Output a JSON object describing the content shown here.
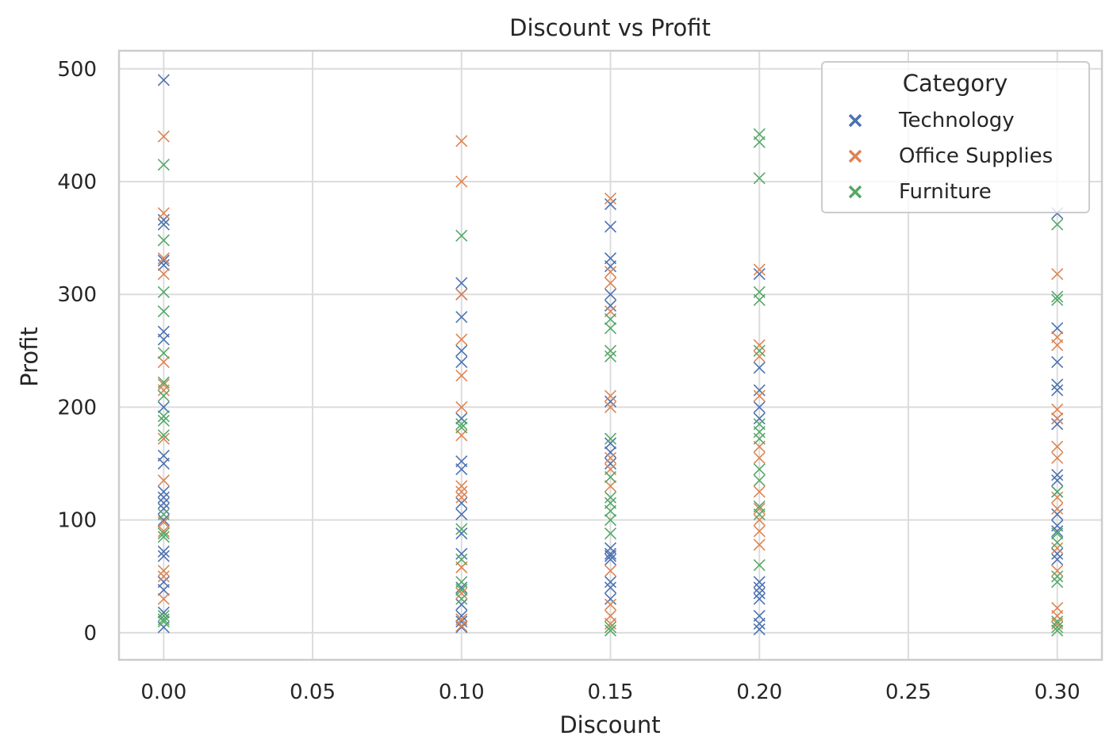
{
  "chart_data": {
    "type": "scatter",
    "title": "Discount vs Profit",
    "xlabel": "Discount",
    "ylabel": "Profit",
    "xlim": [
      -0.015,
      0.315
    ],
    "ylim": [
      -24,
      516
    ],
    "xticks": [
      "0.00",
      "0.05",
      "0.10",
      "0.15",
      "0.20",
      "0.25",
      "0.30"
    ],
    "yticks": [
      "0",
      "100",
      "200",
      "300",
      "400",
      "500"
    ],
    "grid": true,
    "marker": "x",
    "legend": {
      "title": "Category",
      "placement": "top-right"
    },
    "series": [
      {
        "name": "Technology",
        "color": "#4c72b0",
        "points": [
          [
            0.0,
            490
          ],
          [
            0.0,
            366
          ],
          [
            0.0,
            362
          ],
          [
            0.0,
            330
          ],
          [
            0.0,
            326
          ],
          [
            0.0,
            267
          ],
          [
            0.0,
            260
          ],
          [
            0.0,
            200
          ],
          [
            0.0,
            157
          ],
          [
            0.0,
            150
          ],
          [
            0.0,
            125
          ],
          [
            0.0,
            120
          ],
          [
            0.0,
            115
          ],
          [
            0.0,
            110
          ],
          [
            0.0,
            100
          ],
          [
            0.0,
            72
          ],
          [
            0.0,
            68
          ],
          [
            0.0,
            45
          ],
          [
            0.0,
            38
          ],
          [
            0.0,
            18
          ],
          [
            0.0,
            5
          ],
          [
            0.1,
            310
          ],
          [
            0.1,
            300
          ],
          [
            0.1,
            280
          ],
          [
            0.1,
            250
          ],
          [
            0.1,
            240
          ],
          [
            0.1,
            190
          ],
          [
            0.1,
            152
          ],
          [
            0.1,
            145
          ],
          [
            0.1,
            115
          ],
          [
            0.1,
            105
          ],
          [
            0.1,
            88
          ],
          [
            0.1,
            70
          ],
          [
            0.1,
            40
          ],
          [
            0.1,
            25
          ],
          [
            0.1,
            15
          ],
          [
            0.1,
            10
          ],
          [
            0.1,
            5
          ],
          [
            0.15,
            380
          ],
          [
            0.15,
            360
          ],
          [
            0.15,
            332
          ],
          [
            0.15,
            325
          ],
          [
            0.15,
            300
          ],
          [
            0.15,
            290
          ],
          [
            0.15,
            205
          ],
          [
            0.15,
            168
          ],
          [
            0.15,
            160
          ],
          [
            0.15,
            150
          ],
          [
            0.15,
            75
          ],
          [
            0.15,
            70
          ],
          [
            0.15,
            68
          ],
          [
            0.15,
            65
          ],
          [
            0.15,
            45
          ],
          [
            0.15,
            40
          ],
          [
            0.15,
            30
          ],
          [
            0.2,
            318
          ],
          [
            0.2,
            235
          ],
          [
            0.2,
            215
          ],
          [
            0.2,
            200
          ],
          [
            0.2,
            190
          ],
          [
            0.2,
            45
          ],
          [
            0.2,
            40
          ],
          [
            0.2,
            35
          ],
          [
            0.2,
            30
          ],
          [
            0.2,
            15
          ],
          [
            0.2,
            8
          ],
          [
            0.2,
            3
          ],
          [
            0.3,
            372
          ],
          [
            0.3,
            270
          ],
          [
            0.3,
            240
          ],
          [
            0.3,
            220
          ],
          [
            0.3,
            215
          ],
          [
            0.3,
            190
          ],
          [
            0.3,
            185
          ],
          [
            0.3,
            140
          ],
          [
            0.3,
            135
          ],
          [
            0.3,
            125
          ],
          [
            0.3,
            105
          ],
          [
            0.3,
            95
          ],
          [
            0.3,
            90
          ],
          [
            0.3,
            70
          ],
          [
            0.3,
            65
          ]
        ]
      },
      {
        "name": "Office Supplies",
        "color": "#dd8452",
        "points": [
          [
            0.0,
            440
          ],
          [
            0.0,
            372
          ],
          [
            0.0,
            332
          ],
          [
            0.0,
            318
          ],
          [
            0.0,
            240
          ],
          [
            0.0,
            220
          ],
          [
            0.0,
            215
          ],
          [
            0.0,
            172
          ],
          [
            0.0,
            135
          ],
          [
            0.0,
            98
          ],
          [
            0.0,
            90
          ],
          [
            0.0,
            55
          ],
          [
            0.0,
            50
          ],
          [
            0.0,
            30
          ],
          [
            0.1,
            436
          ],
          [
            0.1,
            400
          ],
          [
            0.1,
            300
          ],
          [
            0.1,
            260
          ],
          [
            0.1,
            228
          ],
          [
            0.1,
            200
          ],
          [
            0.1,
            175
          ],
          [
            0.1,
            130
          ],
          [
            0.1,
            125
          ],
          [
            0.1,
            120
          ],
          [
            0.1,
            58
          ],
          [
            0.1,
            35
          ],
          [
            0.1,
            12
          ],
          [
            0.1,
            6
          ],
          [
            0.15,
            385
          ],
          [
            0.15,
            320
          ],
          [
            0.15,
            310
          ],
          [
            0.15,
            285
          ],
          [
            0.15,
            210
          ],
          [
            0.15,
            200
          ],
          [
            0.15,
            155
          ],
          [
            0.15,
            145
          ],
          [
            0.15,
            130
          ],
          [
            0.15,
            55
          ],
          [
            0.15,
            25
          ],
          [
            0.15,
            15
          ],
          [
            0.15,
            8
          ],
          [
            0.2,
            322
          ],
          [
            0.2,
            255
          ],
          [
            0.2,
            245
          ],
          [
            0.2,
            210
          ],
          [
            0.2,
            165
          ],
          [
            0.2,
            155
          ],
          [
            0.2,
            125
          ],
          [
            0.2,
            110
          ],
          [
            0.2,
            100
          ],
          [
            0.2,
            90
          ],
          [
            0.2,
            78
          ],
          [
            0.3,
            318
          ],
          [
            0.3,
            262
          ],
          [
            0.3,
            255
          ],
          [
            0.3,
            198
          ],
          [
            0.3,
            190
          ],
          [
            0.3,
            165
          ],
          [
            0.3,
            155
          ],
          [
            0.3,
            120
          ],
          [
            0.3,
            110
          ],
          [
            0.3,
            75
          ],
          [
            0.3,
            55
          ],
          [
            0.3,
            22
          ],
          [
            0.3,
            15
          ],
          [
            0.3,
            8
          ]
        ]
      },
      {
        "name": "Furniture",
        "color": "#55a868",
        "points": [
          [
            0.0,
            415
          ],
          [
            0.0,
            348
          ],
          [
            0.0,
            302
          ],
          [
            0.0,
            285
          ],
          [
            0.0,
            248
          ],
          [
            0.0,
            222
          ],
          [
            0.0,
            210
          ],
          [
            0.0,
            192
          ],
          [
            0.0,
            188
          ],
          [
            0.0,
            175
          ],
          [
            0.0,
            105
          ],
          [
            0.0,
            88
          ],
          [
            0.0,
            85
          ],
          [
            0.0,
            15
          ],
          [
            0.0,
            12
          ],
          [
            0.0,
            10
          ],
          [
            0.1,
            352
          ],
          [
            0.1,
            185
          ],
          [
            0.1,
            182
          ],
          [
            0.1,
            92
          ],
          [
            0.1,
            65
          ],
          [
            0.1,
            45
          ],
          [
            0.1,
            38
          ],
          [
            0.1,
            30
          ],
          [
            0.15,
            278
          ],
          [
            0.15,
            270
          ],
          [
            0.15,
            250
          ],
          [
            0.15,
            245
          ],
          [
            0.15,
            172
          ],
          [
            0.15,
            138
          ],
          [
            0.15,
            120
          ],
          [
            0.15,
            115
          ],
          [
            0.15,
            108
          ],
          [
            0.15,
            100
          ],
          [
            0.15,
            88
          ],
          [
            0.15,
            5
          ],
          [
            0.15,
            2
          ],
          [
            0.2,
            442
          ],
          [
            0.2,
            435
          ],
          [
            0.2,
            403
          ],
          [
            0.2,
            302
          ],
          [
            0.2,
            295
          ],
          [
            0.2,
            250
          ],
          [
            0.2,
            185
          ],
          [
            0.2,
            178
          ],
          [
            0.2,
            172
          ],
          [
            0.2,
            145
          ],
          [
            0.2,
            135
          ],
          [
            0.2,
            112
          ],
          [
            0.2,
            105
          ],
          [
            0.2,
            60
          ],
          [
            0.3,
            362
          ],
          [
            0.3,
            298
          ],
          [
            0.3,
            295
          ],
          [
            0.3,
            125
          ],
          [
            0.3,
            88
          ],
          [
            0.3,
            80
          ],
          [
            0.3,
            50
          ],
          [
            0.3,
            45
          ],
          [
            0.3,
            10
          ],
          [
            0.3,
            5
          ],
          [
            0.3,
            2
          ]
        ]
      }
    ]
  }
}
